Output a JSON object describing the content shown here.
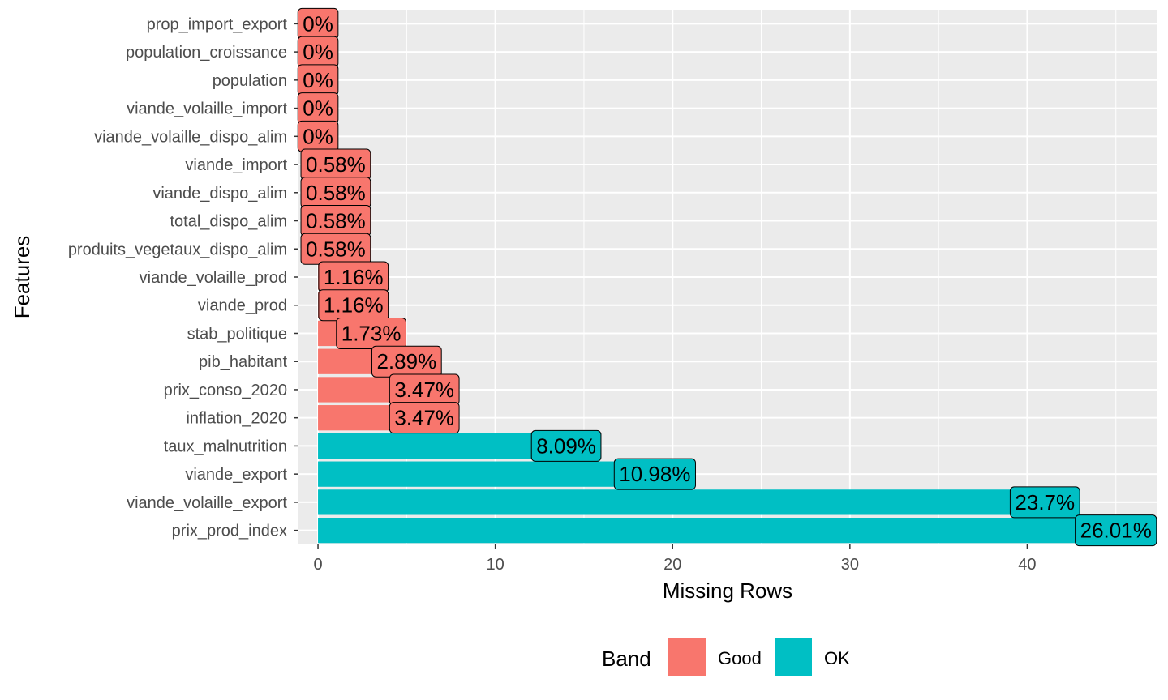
{
  "chart_data": {
    "type": "bar",
    "orientation": "horizontal",
    "xlabel": "Missing Rows",
    "ylabel": "Features",
    "xlim": [
      -1.1,
      47.3
    ],
    "x_ticks": [
      0,
      10,
      20,
      30,
      40
    ],
    "grid": true,
    "legend": {
      "title": "Band",
      "position": "bottom",
      "items": [
        {
          "label": "Good",
          "color": "#F8766D"
        },
        {
          "label": "OK",
          "color": "#00BFC4"
        }
      ]
    },
    "categories": [
      "prop_import_export",
      "population_croissance",
      "population",
      "viande_volaille_import",
      "viande_volaille_dispo_alim",
      "viande_import",
      "viande_dispo_alim",
      "total_dispo_alim",
      "produits_vegetaux_dispo_alim",
      "viande_volaille_prod",
      "viande_prod",
      "stab_politique",
      "pib_habitant",
      "prix_conso_2020",
      "inflation_2020",
      "taux_malnutrition",
      "viande_export",
      "viande_volaille_export",
      "prix_prod_index"
    ],
    "values": [
      0,
      0,
      0,
      0,
      0,
      1,
      1,
      1,
      1,
      2,
      2,
      3,
      5,
      6,
      6,
      14,
      19,
      41,
      45
    ],
    "labels": [
      "0%",
      "0%",
      "0%",
      "0%",
      "0%",
      "0.58%",
      "0.58%",
      "0.58%",
      "0.58%",
      "1.16%",
      "1.16%",
      "1.73%",
      "2.89%",
      "3.47%",
      "3.47%",
      "8.09%",
      "10.98%",
      "23.7%",
      "26.01%"
    ],
    "bands": [
      "Good",
      "Good",
      "Good",
      "Good",
      "Good",
      "Good",
      "Good",
      "Good",
      "Good",
      "Good",
      "Good",
      "Good",
      "Good",
      "Good",
      "Good",
      "OK",
      "OK",
      "OK",
      "OK"
    ]
  }
}
